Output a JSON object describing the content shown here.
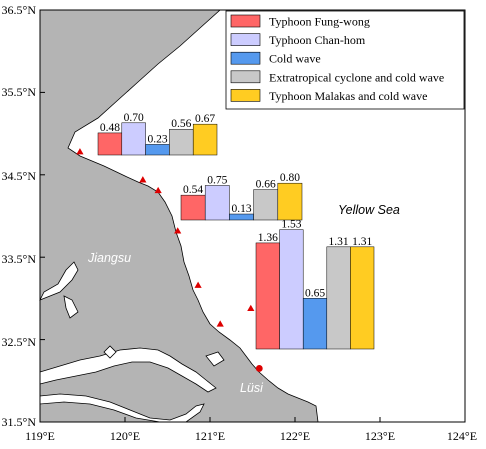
{
  "map": {
    "lon_ticks": [
      "119°E",
      "120°E",
      "121°E",
      "122°E",
      "123°E",
      "124°E"
    ],
    "lat_ticks": [
      "36.5°N",
      "35.5°N",
      "34.5°N",
      "33.5°N",
      "32.5°N",
      "31.5°N"
    ],
    "labels": {
      "sea": "Yellow Sea",
      "province": "Jiangsu",
      "town": "Lüsi"
    },
    "colors": {
      "land": "#b4b4b4",
      "sea": "#ffffff",
      "marker": "#dd0000",
      "river": "#ffffff"
    },
    "markers": [
      {
        "shape": "triangle",
        "lon": 119.47,
        "lat": 34.78
      },
      {
        "shape": "triangle",
        "lon": 120.21,
        "lat": 34.44
      },
      {
        "shape": "triangle",
        "lon": 120.39,
        "lat": 34.31
      },
      {
        "shape": "triangle",
        "lon": 120.62,
        "lat": 33.82
      },
      {
        "shape": "triangle",
        "lon": 120.86,
        "lat": 33.16
      },
      {
        "shape": "triangle",
        "lon": 121.12,
        "lat": 32.69
      },
      {
        "shape": "triangle",
        "lon": 121.48,
        "lat": 32.88
      },
      {
        "shape": "circle",
        "lon": 121.58,
        "lat": 32.15
      }
    ]
  },
  "legend": [
    {
      "label": "Typhoon Fung-wong",
      "color": "#ff6666"
    },
    {
      "label": "Typhoon Chan-hom",
      "color": "#ccccff"
    },
    {
      "label": "Cold wave",
      "color": "#5599ee"
    },
    {
      "label": "Extratropical cyclone and cold wave",
      "color": "#c8c8c8"
    },
    {
      "label": "Typhoon Malakas and cold wave",
      "color": "#ffcc22"
    }
  ],
  "chart_data": {
    "type": "bar",
    "categories": [
      "Typhoon Fung-wong",
      "Typhoon Chan-hom",
      "Cold wave",
      "Extratropical cyclone and cold wave",
      "Typhoon Malakas and cold wave"
    ],
    "groups": [
      {
        "values": [
          0.48,
          0.7,
          0.23,
          0.56,
          0.67
        ],
        "labels": [
          "0.48",
          "0.70",
          "0.23",
          "0.56",
          "0.67"
        ]
      },
      {
        "values": [
          0.54,
          0.75,
          0.13,
          0.66,
          0.8
        ],
        "labels": [
          "0.54",
          "0.75",
          "0.13",
          "0.66",
          "0.80"
        ]
      },
      {
        "values": [
          1.36,
          1.53,
          0.65,
          1.31,
          1.31
        ],
        "labels": [
          "1.36",
          "1.53",
          "0.65",
          "1.31",
          "1.31"
        ]
      }
    ]
  }
}
